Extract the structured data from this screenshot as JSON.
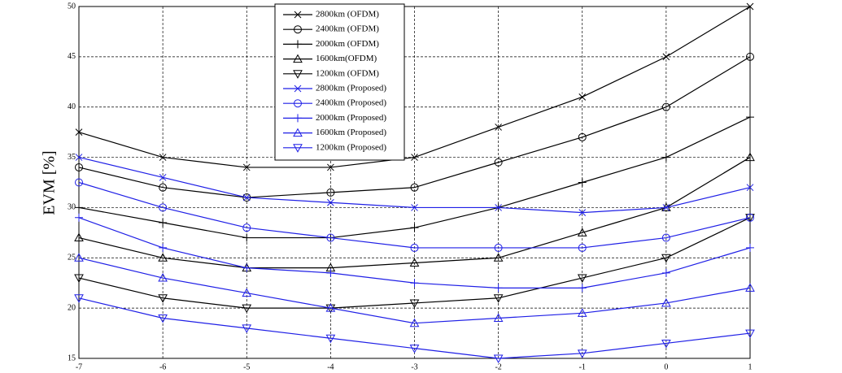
{
  "chart_data": {
    "type": "line",
    "ylabel": "EVM [%]",
    "x": [
      -7,
      -6,
      -5,
      -4,
      -3,
      -2,
      -1,
      0,
      1
    ],
    "xlim": [
      -7,
      1
    ],
    "xticks": [
      -7,
      -6,
      -5,
      -4,
      -3,
      -2,
      -1,
      0,
      1
    ],
    "ylim": [
      15,
      50
    ],
    "yticks": [
      15,
      20,
      25,
      30,
      35,
      40,
      45,
      50
    ],
    "grid": true,
    "legend": "top-center",
    "series": [
      {
        "name": "2800km (OFDM)",
        "color": "#000000",
        "marker": "x",
        "values": [
          37.5,
          35,
          34,
          34,
          35,
          38,
          41,
          45,
          50
        ]
      },
      {
        "name": "2400km (OFDM)",
        "color": "#000000",
        "marker": "o",
        "values": [
          34,
          32,
          31,
          31.5,
          32,
          34.5,
          37,
          40,
          45
        ]
      },
      {
        "name": "2000km (OFDM)",
        "color": "#000000",
        "marker": "+",
        "values": [
          30,
          28.5,
          27,
          27,
          28,
          30,
          32.5,
          35,
          39
        ]
      },
      {
        "name": "1600km(OFDM)",
        "color": "#000000",
        "marker": "^",
        "values": [
          27,
          25,
          24,
          24,
          24.5,
          25,
          27.5,
          30,
          35
        ]
      },
      {
        "name": "1200km (OFDM)",
        "color": "#000000",
        "marker": "v",
        "values": [
          23,
          21,
          20,
          20,
          20.5,
          21,
          23,
          25,
          29
        ]
      },
      {
        "name": "2800km (Proposed)",
        "color": "#1f1fe6",
        "marker": "x",
        "values": [
          35,
          33,
          31,
          30.5,
          30,
          30,
          29.5,
          30,
          32
        ]
      },
      {
        "name": "2400km (Proposed)",
        "color": "#1f1fe6",
        "marker": "o",
        "values": [
          32.5,
          30,
          28,
          27,
          26,
          26,
          26,
          27,
          29
        ]
      },
      {
        "name": "2000km (Proposed)",
        "color": "#1f1fe6",
        "marker": "+",
        "values": [
          29,
          26,
          24,
          23.5,
          22.5,
          22,
          22,
          23.5,
          26
        ]
      },
      {
        "name": "1600km (Proposed)",
        "color": "#1f1fe6",
        "marker": "^",
        "values": [
          25,
          23,
          21.5,
          20,
          18.5,
          19,
          19.5,
          20.5,
          22
        ]
      },
      {
        "name": "1200km (Proposed)",
        "color": "#1f1fe6",
        "marker": "v",
        "values": [
          21,
          19,
          18,
          17,
          16,
          15,
          15.5,
          16.5,
          17.5
        ]
      }
    ]
  }
}
